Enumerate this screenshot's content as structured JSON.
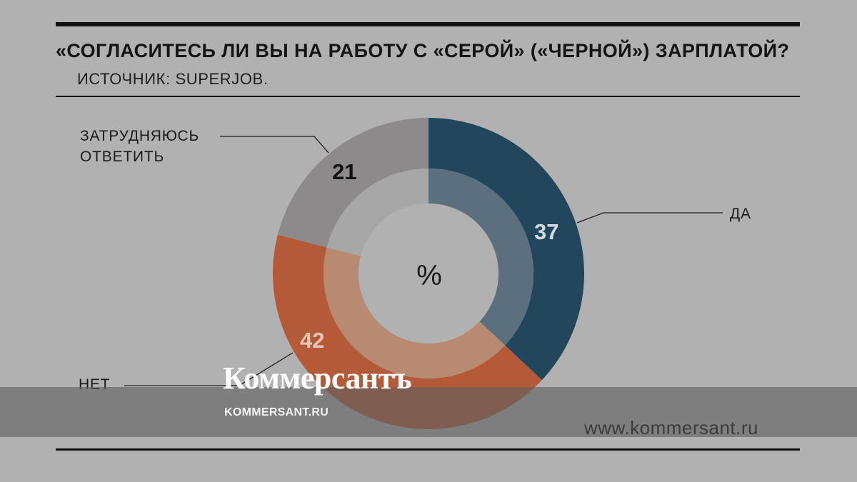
{
  "header": {
    "title": "«СОГЛАСИТЕСЬ ЛИ ВЫ НА РАБОТУ С «СЕРОЙ» («ЧЕРНОЙ») ЗАРПЛАТОЙ?",
    "source": "ИСТОЧНИК: SUPERJOB."
  },
  "chart_data": {
    "type": "pie",
    "subtype": "donut",
    "center_label": "%",
    "categories": [
      "ДА",
      "НЕТ",
      "ЗАТРУДНЯЮСЬ ОТВЕТИТЬ"
    ],
    "values": [
      37,
      42,
      21
    ],
    "value_labels": [
      "37",
      "42",
      "21"
    ],
    "colors": {
      "yes": "#22475c",
      "no": "#b45a38",
      "hard": "#8c8a8a",
      "yes_inner": "#5b6f7f",
      "no_inner": "#b98a72",
      "hard_inner": "#a7a7a7",
      "hole": "#b1b1b1"
    },
    "labels": {
      "yes": "ДА",
      "no": "НЕТ",
      "hard": "ЗАТРУДНЯЮСЬ\nОТВЕТИТЬ"
    }
  },
  "watermark": {
    "logo": "Коммерсантъ",
    "sub": "KOMMERSANT.RU",
    "site": "www.kommersant.ru"
  }
}
